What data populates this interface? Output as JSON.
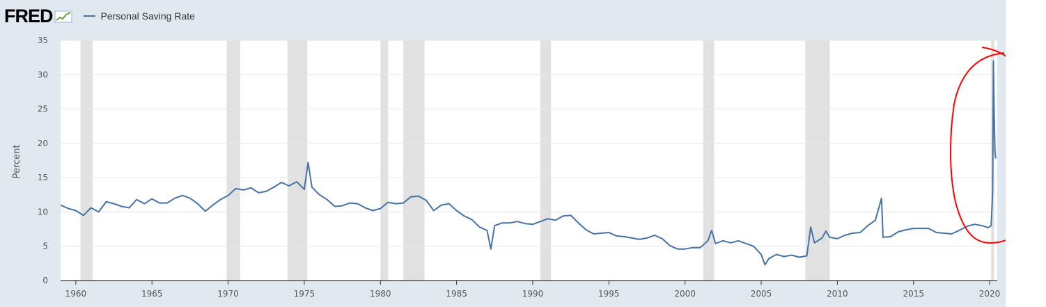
{
  "header": {
    "brand": "FRED",
    "brand_mark": "growth-line-icon"
  },
  "colors": {
    "series": "#4572a7",
    "recession": "#e1e1e1",
    "annotation": "#ff0000",
    "background": "#e1e9f0"
  },
  "chart_data": {
    "type": "line",
    "title": "",
    "xlabel": "",
    "ylabel": "Percent",
    "ylim": [
      0,
      35
    ],
    "xlim": [
      1959.0,
      2020.5
    ],
    "y_ticks": [
      "0",
      "5",
      "10",
      "15",
      "20",
      "25",
      "30",
      "35"
    ],
    "x_ticks": [
      "1960",
      "1965",
      "1970",
      "1975",
      "1980",
      "1985",
      "1990",
      "1995",
      "2000",
      "2005",
      "2010",
      "2015",
      "2020"
    ],
    "grid": true,
    "legend_position": "top-left",
    "series": [
      {
        "name": "Personal Saving Rate",
        "x": [
          1959.0,
          1959.5,
          1960.0,
          1960.5,
          1961.0,
          1961.5,
          1962.0,
          1962.5,
          1963.0,
          1963.5,
          1964.0,
          1964.5,
          1965.0,
          1965.5,
          1966.0,
          1966.5,
          1967.0,
          1967.5,
          1968.0,
          1968.5,
          1969.0,
          1969.5,
          1970.0,
          1970.5,
          1971.0,
          1971.5,
          1972.0,
          1972.5,
          1973.0,
          1973.5,
          1974.0,
          1974.5,
          1975.0,
          1975.25,
          1975.5,
          1976.0,
          1976.5,
          1977.0,
          1977.5,
          1978.0,
          1978.5,
          1979.0,
          1979.5,
          1980.0,
          1980.5,
          1981.0,
          1981.5,
          1982.0,
          1982.5,
          1983.0,
          1983.5,
          1984.0,
          1984.5,
          1985.0,
          1985.5,
          1986.0,
          1986.5,
          1987.0,
          1987.25,
          1987.5,
          1988.0,
          1988.5,
          1989.0,
          1989.5,
          1990.0,
          1990.5,
          1991.0,
          1991.5,
          1992.0,
          1992.5,
          1993.0,
          1993.5,
          1994.0,
          1994.5,
          1995.0,
          1995.5,
          1996.0,
          1996.5,
          1997.0,
          1997.5,
          1998.0,
          1998.5,
          1999.0,
          1999.5,
          2000.0,
          2000.5,
          2001.0,
          2001.5,
          2001.75,
          2002.0,
          2002.5,
          2003.0,
          2003.5,
          2004.0,
          2004.5,
          2005.0,
          2005.25,
          2005.5,
          2006.0,
          2006.5,
          2007.0,
          2007.5,
          2008.0,
          2008.25,
          2008.5,
          2009.0,
          2009.25,
          2009.5,
          2010.0,
          2010.5,
          2011.0,
          2011.5,
          2012.0,
          2012.5,
          2012.9,
          2013.0,
          2013.5,
          2014.0,
          2014.5,
          2015.0,
          2015.5,
          2016.0,
          2016.5,
          2017.0,
          2017.5,
          2018.0,
          2018.5,
          2019.0,
          2019.5,
          2019.9,
          2020.1,
          2020.2,
          2020.25,
          2020.3,
          2020.35,
          2020.4
        ],
        "values": [
          11.0,
          10.5,
          10.2,
          9.5,
          10.6,
          10.0,
          11.5,
          11.2,
          10.8,
          10.6,
          11.8,
          11.2,
          11.9,
          11.3,
          11.3,
          12.0,
          12.4,
          12.0,
          11.2,
          10.1,
          11.0,
          11.8,
          12.4,
          13.4,
          13.2,
          13.5,
          12.8,
          13.0,
          13.6,
          14.3,
          13.8,
          14.4,
          13.3,
          17.2,
          13.6,
          12.5,
          11.8,
          10.8,
          10.9,
          11.3,
          11.2,
          10.6,
          10.2,
          10.5,
          11.4,
          11.2,
          11.3,
          12.2,
          12.3,
          11.7,
          10.2,
          11.0,
          11.2,
          10.2,
          9.4,
          8.9,
          7.8,
          7.3,
          4.6,
          8.0,
          8.4,
          8.4,
          8.6,
          8.3,
          8.2,
          8.6,
          9.0,
          8.8,
          9.4,
          9.5,
          8.4,
          7.4,
          6.8,
          6.9,
          7.0,
          6.5,
          6.4,
          6.2,
          6.0,
          6.2,
          6.6,
          6.1,
          5.1,
          4.6,
          4.6,
          4.8,
          4.8,
          5.8,
          7.3,
          5.4,
          5.8,
          5.5,
          5.8,
          5.4,
          5.0,
          3.8,
          2.3,
          3.2,
          3.8,
          3.5,
          3.7,
          3.4,
          3.6,
          7.8,
          5.5,
          6.2,
          7.2,
          6.3,
          6.1,
          6.6,
          6.9,
          7.0,
          8.0,
          8.8,
          12.0,
          6.3,
          6.4,
          7.1,
          7.4,
          7.6,
          7.6,
          7.6,
          7.0,
          6.9,
          6.8,
          7.3,
          7.9,
          8.2,
          8.0,
          7.7,
          8.0,
          12.9,
          32.0,
          24.0,
          19.0,
          17.8
        ]
      }
    ],
    "recessions": [
      [
        1960.3,
        1961.1
      ],
      [
        1969.9,
        1970.8
      ],
      [
        1973.9,
        1975.2
      ],
      [
        1980.0,
        1980.5
      ],
      [
        1981.5,
        1982.9
      ],
      [
        1990.5,
        1991.2
      ],
      [
        2001.2,
        2001.9
      ],
      [
        2007.9,
        2009.5
      ],
      [
        2020.1,
        2020.3
      ]
    ]
  }
}
